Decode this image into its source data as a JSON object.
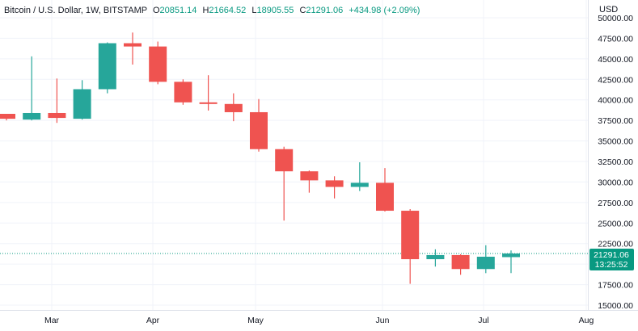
{
  "header": {
    "symbol": "Bitcoin / U.S. Dollar, 1W, BITSTAMP",
    "o_label": "O",
    "o_value": "20851.14",
    "h_label": "H",
    "h_value": "21664.52",
    "l_label": "L",
    "l_value": "18905.55",
    "c_label": "C",
    "c_value": "21291.06",
    "change": "+434.98 (+2.09%)"
  },
  "price_axis": {
    "currency": "USD",
    "last_price": "21291.06",
    "countdown": "13:25:52"
  },
  "colors": {
    "up": "#26a69a",
    "down": "#ef5350",
    "grid": "#f0f3fa",
    "axis_text": "#131722",
    "header_text": "#131722",
    "change_text": "#089981",
    "price_line": "#089981"
  },
  "chart_data": {
    "type": "candlestick",
    "ylim": [
      14500,
      51000
    ],
    "y_ticks": [
      "15000.00",
      "17500.00",
      "20000.00",
      "22500.00",
      "25000.00",
      "27500.00",
      "30000.00",
      "32500.00",
      "35000.00",
      "37500.00",
      "40000.00",
      "42500.00",
      "45000.00",
      "47500.00",
      "50000.00"
    ],
    "x_ticks": [
      "Mar",
      "Apr",
      "May",
      "Jun",
      "Jul",
      "Aug"
    ],
    "grid": true,
    "candles": [
      {
        "o": 38300,
        "h": 38300,
        "l": 37500,
        "c": 37700
      },
      {
        "o": 37600,
        "h": 45300,
        "l": 37500,
        "c": 38400
      },
      {
        "o": 38400,
        "h": 42600,
        "l": 37200,
        "c": 37800
      },
      {
        "o": 37700,
        "h": 42400,
        "l": 37600,
        "c": 41300
      },
      {
        "o": 41300,
        "h": 47000,
        "l": 40800,
        "c": 46900
      },
      {
        "o": 46900,
        "h": 48200,
        "l": 44300,
        "c": 46500
      },
      {
        "o": 46500,
        "h": 47100,
        "l": 41900,
        "c": 42200
      },
      {
        "o": 42200,
        "h": 42500,
        "l": 39400,
        "c": 39700
      },
      {
        "o": 39700,
        "h": 43000,
        "l": 38700,
        "c": 39500
      },
      {
        "o": 39500,
        "h": 40800,
        "l": 37400,
        "c": 38500
      },
      {
        "o": 38500,
        "h": 40100,
        "l": 33700,
        "c": 34000
      },
      {
        "o": 34000,
        "h": 34300,
        "l": 25300,
        "c": 31300
      },
      {
        "o": 31300,
        "h": 31400,
        "l": 28700,
        "c": 30200
      },
      {
        "o": 30200,
        "h": 30700,
        "l": 28000,
        "c": 29400
      },
      {
        "o": 29400,
        "h": 32400,
        "l": 28900,
        "c": 29900
      },
      {
        "o": 29900,
        "h": 31700,
        "l": 26400,
        "c": 26500
      },
      {
        "o": 26500,
        "h": 26700,
        "l": 17600,
        "c": 20600
      },
      {
        "o": 20600,
        "h": 21800,
        "l": 19700,
        "c": 21100
      },
      {
        "o": 21100,
        "h": 21200,
        "l": 18700,
        "c": 19400
      },
      {
        "o": 19400,
        "h": 22300,
        "l": 18900,
        "c": 20900
      },
      {
        "o": 20851,
        "h": 21665,
        "l": 18906,
        "c": 21291
      }
    ]
  }
}
